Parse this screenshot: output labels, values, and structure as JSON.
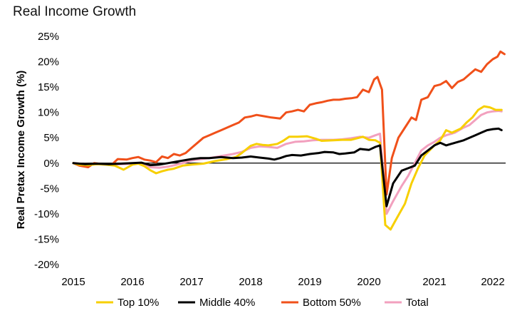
{
  "chart_data": {
    "type": "line",
    "title": "Real Income Growth",
    "xlabel": "",
    "ylabel": "Real Pretax Income Growth (%)",
    "x_ticks": [
      "2015",
      "2016",
      "2017",
      "2018",
      "2019",
      "2020",
      "2021",
      "2022"
    ],
    "y_ticks": [
      "25%",
      "20%",
      "15%",
      "10%",
      "5%",
      "0%",
      "-5%",
      "-10%",
      "-15%",
      "-20%"
    ],
    "ylim": [
      -20,
      25
    ],
    "xlim": [
      2015,
      2022.2
    ],
    "grid": false,
    "legend_position": "bottom",
    "series": [
      {
        "name": "Top 10%",
        "color": "#F7CF00",
        "points": [
          [
            2015.0,
            0
          ],
          [
            2015.1,
            -0.3
          ],
          [
            2015.25,
            -0.4
          ],
          [
            2015.4,
            -0.2
          ],
          [
            2015.55,
            -0.3
          ],
          [
            2015.7,
            -0.5
          ],
          [
            2015.85,
            -1.3
          ],
          [
            2016.0,
            -0.3
          ],
          [
            2016.1,
            -0.1
          ],
          [
            2016.2,
            -0.6
          ],
          [
            2016.3,
            -1.4
          ],
          [
            2016.4,
            -2.0
          ],
          [
            2016.5,
            -1.6
          ],
          [
            2016.6,
            -1.3
          ],
          [
            2016.7,
            -1.1
          ],
          [
            2016.85,
            -0.5
          ],
          [
            2017.0,
            -0.3
          ],
          [
            2017.2,
            -0.1
          ],
          [
            2017.4,
            0.4
          ],
          [
            2017.6,
            0.8
          ],
          [
            2017.75,
            1.2
          ],
          [
            2017.85,
            2.0
          ],
          [
            2018.0,
            3.4
          ],
          [
            2018.1,
            3.8
          ],
          [
            2018.2,
            3.6
          ],
          [
            2018.3,
            3.5
          ],
          [
            2018.45,
            3.8
          ],
          [
            2018.55,
            4.4
          ],
          [
            2018.65,
            5.2
          ],
          [
            2018.8,
            5.2
          ],
          [
            2018.95,
            5.3
          ],
          [
            2019.1,
            4.8
          ],
          [
            2019.2,
            4.4
          ],
          [
            2019.4,
            4.5
          ],
          [
            2019.55,
            4.6
          ],
          [
            2019.7,
            4.6
          ],
          [
            2019.8,
            4.9
          ],
          [
            2019.9,
            5.2
          ],
          [
            2020.0,
            4.6
          ],
          [
            2020.1,
            4.5
          ],
          [
            2020.17,
            4.0
          ],
          [
            2020.25,
            -12.2
          ],
          [
            2020.33,
            -13.1
          ],
          [
            2020.42,
            -11.0
          ],
          [
            2020.55,
            -8.0
          ],
          [
            2020.65,
            -4.0
          ],
          [
            2020.75,
            -1.0
          ],
          [
            2020.85,
            1.5
          ],
          [
            2021.0,
            3.5
          ],
          [
            2021.1,
            4.5
          ],
          [
            2021.2,
            6.5
          ],
          [
            2021.3,
            6.0
          ],
          [
            2021.45,
            6.8
          ],
          [
            2021.55,
            8.0
          ],
          [
            2021.65,
            9.0
          ],
          [
            2021.75,
            10.5
          ],
          [
            2021.85,
            11.2
          ],
          [
            2021.95,
            11.0
          ],
          [
            2022.05,
            10.5
          ],
          [
            2022.15,
            10.5
          ]
        ]
      },
      {
        "name": "Middle 40%",
        "color": "#000000",
        "points": [
          [
            2015.0,
            0
          ],
          [
            2015.2,
            -0.2
          ],
          [
            2015.4,
            -0.1
          ],
          [
            2015.6,
            -0.2
          ],
          [
            2015.8,
            -0.1
          ],
          [
            2016.0,
            0.0
          ],
          [
            2016.15,
            0.1
          ],
          [
            2016.3,
            -0.4
          ],
          [
            2016.45,
            -0.3
          ],
          [
            2016.6,
            0.0
          ],
          [
            2016.75,
            0.3
          ],
          [
            2016.9,
            0.6
          ],
          [
            2017.0,
            0.8
          ],
          [
            2017.15,
            1.0
          ],
          [
            2017.3,
            1.0
          ],
          [
            2017.5,
            1.2
          ],
          [
            2017.7,
            1.0
          ],
          [
            2017.85,
            1.1
          ],
          [
            2018.0,
            1.3
          ],
          [
            2018.15,
            1.1
          ],
          [
            2018.3,
            0.9
          ],
          [
            2018.4,
            0.7
          ],
          [
            2018.5,
            1.0
          ],
          [
            2018.6,
            1.4
          ],
          [
            2018.7,
            1.6
          ],
          [
            2018.85,
            1.5
          ],
          [
            2019.0,
            1.8
          ],
          [
            2019.15,
            2.0
          ],
          [
            2019.25,
            2.2
          ],
          [
            2019.4,
            2.1
          ],
          [
            2019.5,
            1.8
          ],
          [
            2019.6,
            1.9
          ],
          [
            2019.75,
            2.1
          ],
          [
            2019.85,
            2.8
          ],
          [
            2020.0,
            2.6
          ],
          [
            2020.1,
            3.2
          ],
          [
            2020.17,
            3.5
          ],
          [
            2020.27,
            -8.5
          ],
          [
            2020.37,
            -4.0
          ],
          [
            2020.5,
            -1.5
          ],
          [
            2020.6,
            -1.0
          ],
          [
            2020.7,
            -0.5
          ],
          [
            2020.8,
            1.5
          ],
          [
            2020.9,
            2.5
          ],
          [
            2021.0,
            3.5
          ],
          [
            2021.1,
            4.0
          ],
          [
            2021.2,
            3.5
          ],
          [
            2021.35,
            4.0
          ],
          [
            2021.5,
            4.5
          ],
          [
            2021.6,
            5.0
          ],
          [
            2021.7,
            5.5
          ],
          [
            2021.8,
            6.0
          ],
          [
            2021.9,
            6.5
          ],
          [
            2022.0,
            6.7
          ],
          [
            2022.1,
            6.8
          ],
          [
            2022.15,
            6.5
          ]
        ]
      },
      {
        "name": "Bottom 50%",
        "color": "#F0501A",
        "points": [
          [
            2015.0,
            0
          ],
          [
            2015.1,
            -0.5
          ],
          [
            2015.25,
            -0.8
          ],
          [
            2015.35,
            0.0
          ],
          [
            2015.5,
            -0.2
          ],
          [
            2015.65,
            -0.3
          ],
          [
            2015.75,
            0.8
          ],
          [
            2015.9,
            0.7
          ],
          [
            2016.0,
            1.0
          ],
          [
            2016.1,
            1.2
          ],
          [
            2016.2,
            0.7
          ],
          [
            2016.3,
            0.5
          ],
          [
            2016.4,
            0.2
          ],
          [
            2016.5,
            1.3
          ],
          [
            2016.6,
            1.0
          ],
          [
            2016.7,
            1.8
          ],
          [
            2016.8,
            1.5
          ],
          [
            2016.9,
            2.0
          ],
          [
            2017.0,
            3.0
          ],
          [
            2017.1,
            4.0
          ],
          [
            2017.2,
            5.0
          ],
          [
            2017.3,
            5.5
          ],
          [
            2017.4,
            6.0
          ],
          [
            2017.5,
            6.5
          ],
          [
            2017.6,
            7.0
          ],
          [
            2017.7,
            7.5
          ],
          [
            2017.8,
            8.0
          ],
          [
            2017.9,
            9.0
          ],
          [
            2018.0,
            9.2
          ],
          [
            2018.1,
            9.5
          ],
          [
            2018.2,
            9.3
          ],
          [
            2018.35,
            9.0
          ],
          [
            2018.5,
            8.8
          ],
          [
            2018.6,
            10.0
          ],
          [
            2018.7,
            10.2
          ],
          [
            2018.8,
            10.5
          ],
          [
            2018.9,
            10.2
          ],
          [
            2019.0,
            11.5
          ],
          [
            2019.1,
            11.8
          ],
          [
            2019.2,
            12.0
          ],
          [
            2019.3,
            12.3
          ],
          [
            2019.4,
            12.5
          ],
          [
            2019.5,
            12.5
          ],
          [
            2019.6,
            12.7
          ],
          [
            2019.7,
            12.8
          ],
          [
            2019.8,
            13.0
          ],
          [
            2019.9,
            14.5
          ],
          [
            2020.0,
            14.0
          ],
          [
            2020.08,
            16.5
          ],
          [
            2020.13,
            17.0
          ],
          [
            2020.2,
            14.5
          ],
          [
            2020.27,
            -6.2
          ],
          [
            2020.35,
            1.0
          ],
          [
            2020.45,
            5.0
          ],
          [
            2020.55,
            7.0
          ],
          [
            2020.65,
            9.0
          ],
          [
            2020.72,
            8.5
          ],
          [
            2020.8,
            12.5
          ],
          [
            2020.9,
            13.0
          ],
          [
            2021.0,
            15.2
          ],
          [
            2021.1,
            15.5
          ],
          [
            2021.2,
            16.2
          ],
          [
            2021.3,
            14.8
          ],
          [
            2021.4,
            16.0
          ],
          [
            2021.5,
            16.5
          ],
          [
            2021.6,
            17.5
          ],
          [
            2021.7,
            18.5
          ],
          [
            2021.8,
            18.0
          ],
          [
            2021.9,
            19.5
          ],
          [
            2022.0,
            20.5
          ],
          [
            2022.08,
            21.0
          ],
          [
            2022.13,
            22.0
          ],
          [
            2022.2,
            21.5
          ]
        ]
      },
      {
        "name": "Total",
        "color": "#F2A0BE",
        "points": [
          [
            2015.0,
            0
          ],
          [
            2015.2,
            -0.2
          ],
          [
            2015.4,
            -0.2
          ],
          [
            2015.6,
            -0.3
          ],
          [
            2015.8,
            -0.2
          ],
          [
            2016.0,
            -0.1
          ],
          [
            2016.15,
            0.0
          ],
          [
            2016.3,
            -0.8
          ],
          [
            2016.45,
            -0.9
          ],
          [
            2016.6,
            -0.7
          ],
          [
            2016.75,
            -0.3
          ],
          [
            2016.9,
            0.2
          ],
          [
            2017.0,
            0.5
          ],
          [
            2017.15,
            0.8
          ],
          [
            2017.3,
            1.0
          ],
          [
            2017.5,
            1.4
          ],
          [
            2017.7,
            1.8
          ],
          [
            2017.85,
            2.2
          ],
          [
            2018.0,
            3.0
          ],
          [
            2018.15,
            3.3
          ],
          [
            2018.3,
            3.2
          ],
          [
            2018.45,
            3.0
          ],
          [
            2018.6,
            3.8
          ],
          [
            2018.75,
            4.2
          ],
          [
            2018.9,
            4.3
          ],
          [
            2019.05,
            4.5
          ],
          [
            2019.2,
            4.6
          ],
          [
            2019.4,
            4.6
          ],
          [
            2019.55,
            4.7
          ],
          [
            2019.7,
            4.9
          ],
          [
            2019.85,
            5.2
          ],
          [
            2020.0,
            5.0
          ],
          [
            2020.1,
            5.5
          ],
          [
            2020.17,
            5.8
          ],
          [
            2020.27,
            -10.0
          ],
          [
            2020.37,
            -7.5
          ],
          [
            2020.5,
            -4.5
          ],
          [
            2020.6,
            -2.5
          ],
          [
            2020.7,
            0.0
          ],
          [
            2020.8,
            2.5
          ],
          [
            2020.9,
            3.5
          ],
          [
            2021.0,
            4.2
          ],
          [
            2021.1,
            5.0
          ],
          [
            2021.2,
            5.5
          ],
          [
            2021.35,
            6.0
          ],
          [
            2021.5,
            7.0
          ],
          [
            2021.6,
            7.5
          ],
          [
            2021.7,
            8.5
          ],
          [
            2021.8,
            9.5
          ],
          [
            2021.9,
            10.0
          ],
          [
            2022.0,
            10.2
          ],
          [
            2022.1,
            10.3
          ],
          [
            2022.15,
            10.2
          ]
        ]
      }
    ]
  }
}
